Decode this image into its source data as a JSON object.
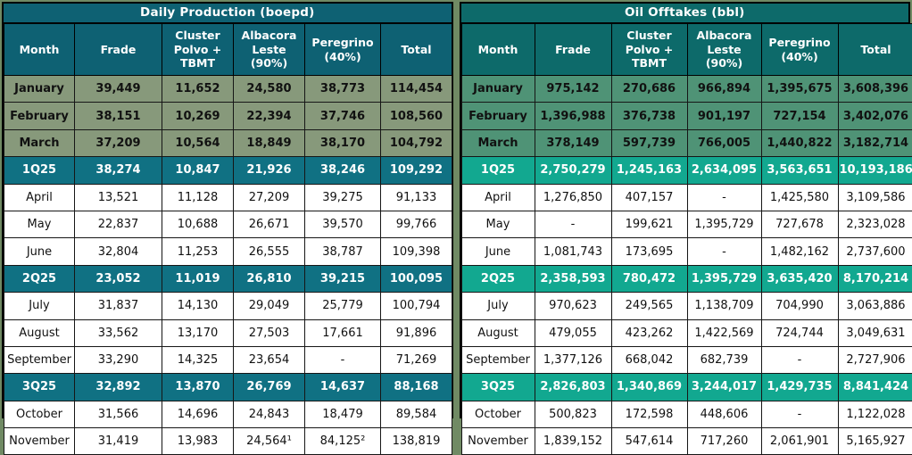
{
  "page": {
    "background": "#708a64"
  },
  "tables": [
    {
      "title": "Daily Production (boepd)",
      "columns": [
        "Month",
        "Frade",
        "Cluster Polvo + TBMT",
        "Albacora Leste (90%)",
        "Peregrino (40%)",
        "Total"
      ],
      "colors": {
        "header": "#0e6173",
        "quarter": "#107183",
        "recent": "#87997b",
        "total-recent": "#ddf0e8",
        "total-normal": "#d2ecdf",
        "total-last": "#bfe7d3"
      },
      "rows": [
        {
          "style": "recent",
          "total": "recent",
          "cells": [
            "January",
            "39,449",
            "11,652",
            "24,580",
            "38,773",
            "114,454"
          ]
        },
        {
          "style": "recent",
          "total": "recent",
          "cells": [
            "February",
            "38,151",
            "10,269",
            "22,394",
            "37,746",
            "108,560"
          ]
        },
        {
          "style": "recent",
          "total": "recent",
          "cells": [
            "March",
            "37,209",
            "10,564",
            "18,849",
            "38,170",
            "104,792"
          ]
        },
        {
          "style": "quarter",
          "total": "quarter",
          "cells": [
            "1Q25",
            "38,274",
            "10,847",
            "21,926",
            "38,246",
            "109,292"
          ]
        },
        {
          "style": "normal",
          "total": "normal",
          "cells": [
            "April",
            "13,521",
            "11,128",
            "27,209",
            "39,275",
            "91,133"
          ]
        },
        {
          "style": "normal",
          "total": "normal",
          "cells": [
            "May",
            "22,837",
            "10,688",
            "26,671",
            "39,570",
            "99,766"
          ]
        },
        {
          "style": "normal",
          "total": "normal",
          "cells": [
            "June",
            "32,804",
            "11,253",
            "26,555",
            "38,787",
            "109,398"
          ]
        },
        {
          "style": "quarter",
          "total": "quarter",
          "cells": [
            "2Q25",
            "23,052",
            "11,019",
            "26,810",
            "39,215",
            "100,095"
          ]
        },
        {
          "style": "normal",
          "total": "normal",
          "cells": [
            "July",
            "31,837",
            "14,130",
            "29,049",
            "25,779",
            "100,794"
          ]
        },
        {
          "style": "normal",
          "total": "normal",
          "cells": [
            "August",
            "33,562",
            "13,170",
            "27,503",
            "17,661",
            "91,896"
          ]
        },
        {
          "style": "normal",
          "total": "normal",
          "cells": [
            "September",
            "33,290",
            "14,325",
            "23,654",
            "-",
            "71,269"
          ]
        },
        {
          "style": "quarter",
          "total": "quarter",
          "cells": [
            "3Q25",
            "32,892",
            "13,870",
            "26,769",
            "14,637",
            "88,168"
          ]
        },
        {
          "style": "normal",
          "total": "normal",
          "cells": [
            "October",
            "31,566",
            "14,696",
            "24,843",
            "18,479",
            "89,584"
          ]
        },
        {
          "style": "normal",
          "total": "last",
          "cells": [
            "November",
            "31,419",
            "13,983",
            "24,564¹",
            "84,125²",
            "138,819"
          ]
        }
      ]
    },
    {
      "title": "Oil Offtakes (bbl)",
      "columns": [
        "Month",
        "Frade",
        "Cluster Polvo + TBMT",
        "Albacora Leste (90%)",
        "Peregrino (40%)",
        "Total"
      ],
      "colors": {
        "header": "#0d6a6a",
        "quarter": "#12a890",
        "recent": "#4f9376",
        "total-recent": "#f0f0ee",
        "total-normal": "#f0f0ee",
        "total-last": "#f0f0ee"
      },
      "rows": [
        {
          "style": "recent",
          "total": "recent",
          "cells": [
            "January",
            "975,142",
            "270,686",
            "966,894",
            "1,395,675",
            "3,608,396"
          ]
        },
        {
          "style": "recent",
          "total": "recent",
          "cells": [
            "February",
            "1,396,988",
            "376,738",
            "901,197",
            "727,154",
            "3,402,076"
          ]
        },
        {
          "style": "recent",
          "total": "recent",
          "cells": [
            "March",
            "378,149",
            "597,739",
            "766,005",
            "1,440,822",
            "3,182,714"
          ]
        },
        {
          "style": "quarter",
          "total": "quarter",
          "cells": [
            "1Q25",
            "2,750,279",
            "1,245,163",
            "2,634,095",
            "3,563,651",
            "10,193,186"
          ]
        },
        {
          "style": "normal",
          "total": "normal",
          "cells": [
            "April",
            "1,276,850",
            "407,157",
            "-",
            "1,425,580",
            "3,109,586"
          ]
        },
        {
          "style": "normal",
          "total": "normal",
          "cells": [
            "May",
            "-",
            "199,621",
            "1,395,729",
            "727,678",
            "2,323,028"
          ]
        },
        {
          "style": "normal",
          "total": "normal",
          "cells": [
            "June",
            "1,081,743",
            "173,695",
            "-",
            "1,482,162",
            "2,737,600"
          ]
        },
        {
          "style": "quarter",
          "total": "quarter",
          "cells": [
            "2Q25",
            "2,358,593",
            "780,472",
            "1,395,729",
            "3,635,420",
            "8,170,214"
          ]
        },
        {
          "style": "normal",
          "total": "normal",
          "cells": [
            "July",
            "970,623",
            "249,565",
            "1,138,709",
            "704,990",
            "3,063,886"
          ]
        },
        {
          "style": "normal",
          "total": "normal",
          "cells": [
            "August",
            "479,055",
            "423,262",
            "1,422,569",
            "724,744",
            "3,049,631"
          ]
        },
        {
          "style": "normal",
          "total": "normal",
          "cells": [
            "September",
            "1,377,126",
            "668,042",
            "682,739",
            "-",
            "2,727,906"
          ]
        },
        {
          "style": "quarter",
          "total": "quarter",
          "cells": [
            "3Q25",
            "2,826,803",
            "1,340,869",
            "3,244,017",
            "1,429,735",
            "8,841,424"
          ]
        },
        {
          "style": "normal",
          "total": "normal",
          "cells": [
            "October",
            "500,823",
            "172,598",
            "448,606",
            "-",
            "1,122,028"
          ]
        },
        {
          "style": "normal",
          "total": "last",
          "cells": [
            "November",
            "1,839,152",
            "547,614",
            "717,260",
            "2,061,901",
            "5,165,927"
          ]
        }
      ]
    }
  ]
}
